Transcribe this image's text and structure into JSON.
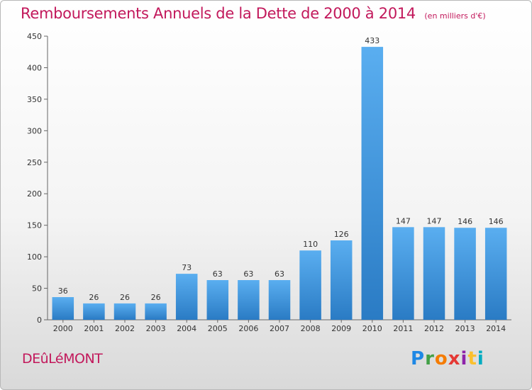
{
  "header": {
    "title": "Remboursements Annuels de la Dette de 2000 à 2014",
    "subtitle": "(en milliers d'€)"
  },
  "footer": {
    "commune": "DEûLéMONT",
    "logo_text": "Proxiti"
  },
  "colors": {
    "title": "#c2185b",
    "bar_light": "#5aaef0",
    "bar_dark": "#2a7bc4"
  },
  "chart_data": {
    "type": "bar",
    "title": "Remboursements Annuels de la Dette de 2000 à 2014",
    "subtitle": "(en milliers d'€)",
    "xlabel": "",
    "ylabel": "",
    "categories": [
      "2000",
      "2001",
      "2002",
      "2003",
      "2004",
      "2005",
      "2006",
      "2007",
      "2008",
      "2009",
      "2010",
      "2011",
      "2012",
      "2013",
      "2014"
    ],
    "values": [
      36,
      26,
      26,
      26,
      73,
      63,
      63,
      63,
      110,
      126,
      433,
      147,
      147,
      146,
      146
    ],
    "ylim": [
      0,
      450
    ],
    "yticks": [
      0,
      50,
      100,
      150,
      200,
      250,
      300,
      350,
      400,
      450
    ],
    "grid": false,
    "legend": "none"
  }
}
